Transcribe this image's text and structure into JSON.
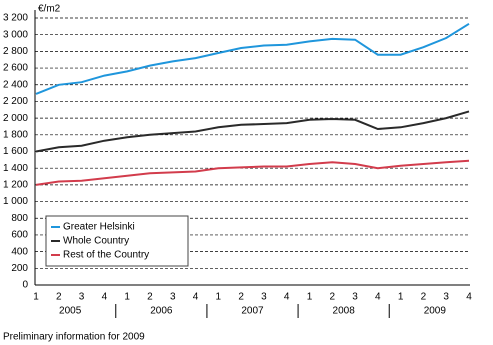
{
  "chart_data": {
    "type": "line",
    "y_unit_label": "€/m2",
    "categories": [
      "1",
      "2",
      "3",
      "4",
      "1",
      "2",
      "3",
      "4",
      "1",
      "2",
      "3",
      "4",
      "1",
      "2",
      "3",
      "4",
      "1",
      "2",
      "3",
      "4"
    ],
    "years": [
      "2005",
      "2006",
      "2007",
      "2008",
      "2009"
    ],
    "series": [
      {
        "name": "Greater Helsinki",
        "color": "#1f96dc",
        "values": [
          2290,
          2400,
          2430,
          2510,
          2560,
          2630,
          2680,
          2720,
          2780,
          2840,
          2870,
          2880,
          2920,
          2950,
          2940,
          2760,
          2760,
          2850,
          2960,
          3130
        ]
      },
      {
        "name": "Whole Country",
        "color": "#2a2a2a",
        "values": [
          1600,
          1650,
          1670,
          1730,
          1770,
          1800,
          1820,
          1840,
          1890,
          1920,
          1930,
          1940,
          1980,
          1990,
          1980,
          1870,
          1890,
          1940,
          2000,
          2080
        ]
      },
      {
        "name": "Rest of the Country",
        "color": "#d23c4c",
        "values": [
          1200,
          1240,
          1250,
          1280,
          1310,
          1340,
          1350,
          1360,
          1400,
          1410,
          1420,
          1420,
          1450,
          1470,
          1450,
          1400,
          1430,
          1450,
          1470,
          1490
        ]
      }
    ],
    "ylim": [
      0,
      3200
    ],
    "yticks": [
      0,
      200,
      400,
      600,
      800,
      {
        "value": 1000,
        "label": "1 000"
      },
      {
        "value": 1200,
        "label": "1 200"
      },
      {
        "value": 1400,
        "label": "1 400"
      },
      {
        "value": 1600,
        "label": "1 600"
      },
      {
        "value": 1800,
        "label": "1 800"
      },
      {
        "value": 2000,
        "label": "2 000"
      },
      {
        "value": 2200,
        "label": "2 200"
      },
      {
        "value": 2400,
        "label": "2 400"
      },
      {
        "value": 2600,
        "label": "2 600"
      },
      {
        "value": 2800,
        "label": "2 800"
      },
      {
        "value": 3000,
        "label": "3 000"
      },
      {
        "value": 3200,
        "label": "3 200"
      }
    ],
    "grid": true,
    "note": "Preliminary information for 2009"
  }
}
